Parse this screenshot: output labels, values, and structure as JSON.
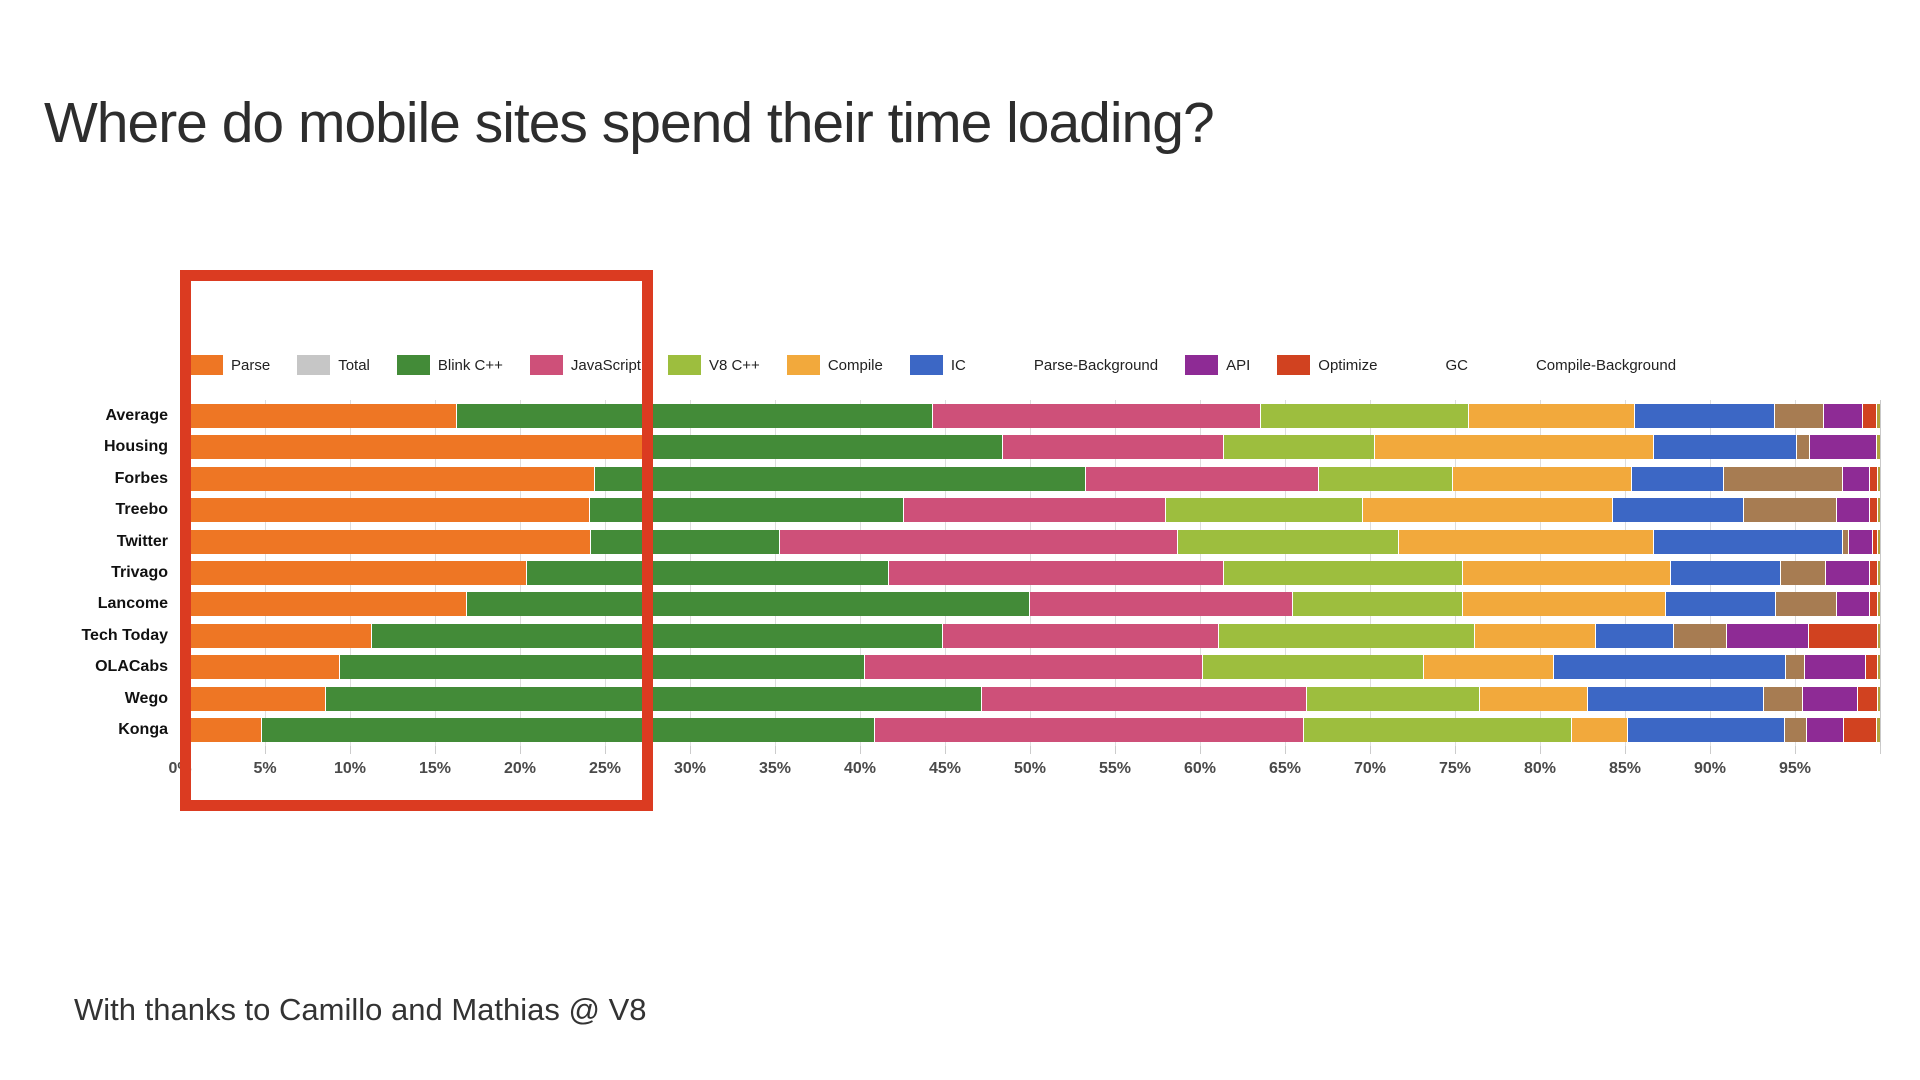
{
  "page": {
    "title": "Where do mobile sites spend their time loading?",
    "footer": "With thanks to Camillo and Mathias @ V8"
  },
  "annotation": {
    "type": "highlight-rectangle",
    "color": "#db3b21",
    "x_range_percent": [
      0,
      27.5
    ],
    "covers": "Parse portion of the bars from 0% to ~27%"
  },
  "chart_data": {
    "type": "bar",
    "stacked": true,
    "orientation": "horizontal",
    "unit": "percent",
    "grid": true,
    "legend_position": "top",
    "xlim": [
      0,
      100
    ],
    "x_ticks": [
      "0%",
      "5%",
      "10%",
      "15%",
      "20%",
      "25%",
      "30%",
      "35%",
      "40%",
      "45%",
      "50%",
      "55%",
      "60%",
      "65%",
      "70%",
      "75%",
      "80%",
      "85%",
      "90%",
      "95%"
    ],
    "categories": [
      "Average",
      "Housing",
      "Forbes",
      "Treebo",
      "Twitter",
      "Trivago",
      "Lancome",
      "Tech Today",
      "OLACabs",
      "Wego",
      "Konga"
    ],
    "series": [
      {
        "name": "Parse",
        "color": "#ee7624",
        "pattern": false,
        "values": [
          16.3,
          27.5,
          24.4,
          24.1,
          24.2,
          20.4,
          16.9,
          11.3,
          9.4,
          8.6,
          4.8
        ]
      },
      {
        "name": "Total",
        "color": "#c6c6c6",
        "pattern": false,
        "values": [
          0,
          0,
          0,
          0,
          0,
          0,
          0,
          0,
          0,
          0,
          0
        ]
      },
      {
        "name": "Blink C++",
        "color": "#438b38",
        "pattern": false,
        "values": [
          28.0,
          20.9,
          28.9,
          18.5,
          11.1,
          21.3,
          33.1,
          33.6,
          30.9,
          38.6,
          36.1
        ]
      },
      {
        "name": "JavaScript",
        "color": "#ce5079",
        "pattern": false,
        "values": [
          19.3,
          13.0,
          13.7,
          15.4,
          23.4,
          19.7,
          15.5,
          16.2,
          19.9,
          19.1,
          25.2
        ]
      },
      {
        "name": "V8 C++",
        "color": "#9dbe3e",
        "pattern": false,
        "values": [
          12.2,
          8.9,
          7.9,
          11.6,
          13.0,
          14.1,
          10.0,
          15.1,
          13.0,
          10.2,
          15.8
        ]
      },
      {
        "name": "Compile",
        "color": "#f2a93c",
        "pattern": false,
        "values": [
          9.8,
          16.4,
          10.5,
          14.7,
          15.0,
          12.2,
          11.9,
          7.1,
          7.6,
          6.3,
          3.3
        ]
      },
      {
        "name": "IC",
        "color": "#3c67c5",
        "pattern": false,
        "values": [
          8.2,
          8.4,
          5.4,
          7.7,
          11.1,
          6.5,
          6.5,
          4.6,
          13.7,
          10.4,
          9.2
        ]
      },
      {
        "name": "Parse-Background",
        "color": "#a77c52",
        "pattern": true,
        "values": [
          2.9,
          0.8,
          7.0,
          5.5,
          0.4,
          2.6,
          3.6,
          3.1,
          1.1,
          2.3,
          1.3
        ]
      },
      {
        "name": "API",
        "color": "#8e2b95",
        "pattern": false,
        "values": [
          2.3,
          3.9,
          1.6,
          1.9,
          1.4,
          2.6,
          1.9,
          4.8,
          3.6,
          3.2,
          2.2
        ]
      },
      {
        "name": "Optimize",
        "color": "#d14220",
        "pattern": false,
        "values": [
          0.8,
          0,
          0.5,
          0.5,
          0.3,
          0.5,
          0.5,
          4.1,
          0.7,
          1.2,
          1.9
        ]
      },
      {
        "name": "GC",
        "color": "#2d7da0",
        "pattern": true,
        "values": [
          0,
          0,
          0,
          0,
          0,
          0,
          0,
          0,
          0,
          0,
          0
        ]
      },
      {
        "name": "Compile-Background",
        "color": "#b1a23c",
        "pattern": true,
        "values": [
          0.2,
          0.2,
          0.1,
          0.1,
          0.1,
          0.1,
          0.1,
          0.1,
          0.1,
          0.1,
          0.2
        ]
      }
    ]
  }
}
